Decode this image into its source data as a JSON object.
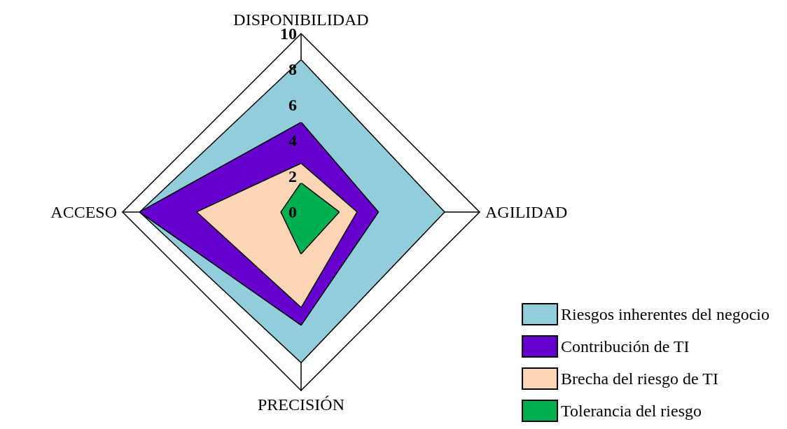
{
  "chart_data": {
    "type": "radar",
    "categories": [
      "DISPONIBILIDAD",
      "AGILIDAD",
      "PRECISIÓN",
      "ACCESO"
    ],
    "ylim": [
      0,
      10
    ],
    "yticks": [
      0,
      2,
      4,
      6,
      8,
      10
    ],
    "legend": "bottom right",
    "series": [
      {
        "name": "Riesgos inherentes del negocio",
        "color": "#92cddc",
        "values": [
          8.5,
          8,
          8.4,
          9
        ]
      },
      {
        "name": "Contribución de TI",
        "color": "#6600cc",
        "values": [
          5,
          4.3,
          6.3,
          9
        ]
      },
      {
        "name": "Brecha del riesgo de TI",
        "color": "#fcd5b5",
        "values": [
          2.7,
          3.1,
          5.3,
          5.8
        ]
      },
      {
        "name": "Tolerancia del riesgo",
        "color": "#00b050",
        "values": [
          1.6,
          2.1,
          2.3,
          1.1
        ]
      }
    ]
  }
}
